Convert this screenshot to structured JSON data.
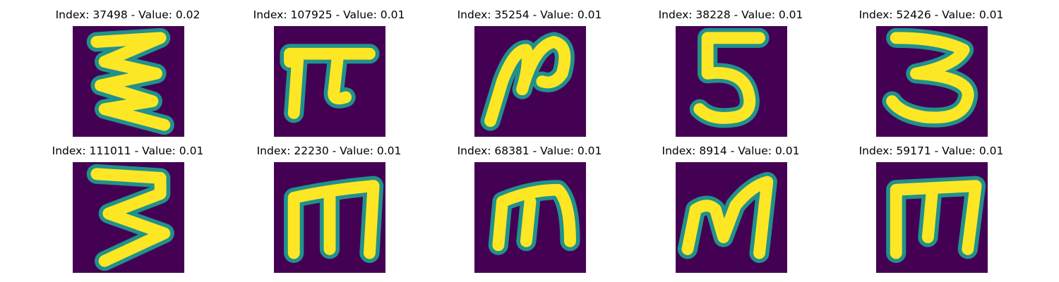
{
  "colors": {
    "background": "#440154",
    "edge": "#21918c",
    "mid": "#5ec962",
    "stroke": "#fde725"
  },
  "panels": [
    {
      "title": "Index: 37498 - Value: 0.02",
      "glyph": "zigzag"
    },
    {
      "title": "Index: 107925 - Value: 0.01",
      "glyph": "pi"
    },
    {
      "title": "Index: 35254 - Value: 0.01",
      "glyph": "n-loop"
    },
    {
      "title": "Index: 38228 - Value: 0.01",
      "glyph": "five"
    },
    {
      "title": "Index: 52426 - Value: 0.01",
      "glyph": "three"
    },
    {
      "title": "Index: 111011 - Value: 0.01",
      "glyph": "three"
    },
    {
      "title": "Index: 22230 - Value: 0.01",
      "glyph": "m"
    },
    {
      "title": "Index: 68381 - Value: 0.01",
      "glyph": "m"
    },
    {
      "title": "Index: 8914 - Value: 0.01",
      "glyph": "M"
    },
    {
      "title": "Index: 59171 - Value: 0.01",
      "glyph": "m"
    }
  ]
}
